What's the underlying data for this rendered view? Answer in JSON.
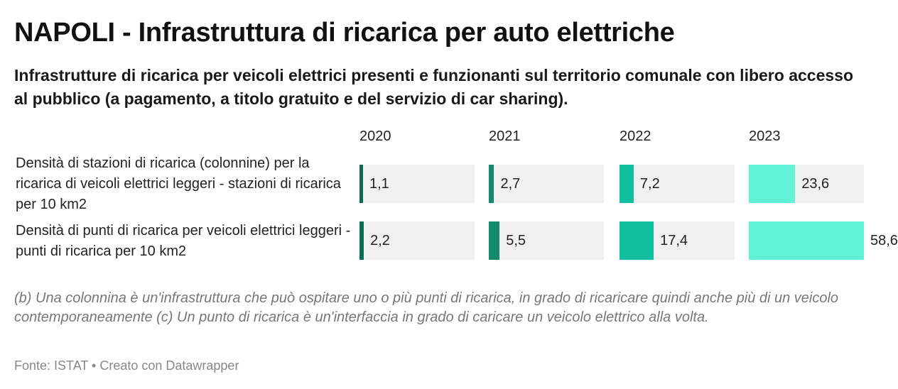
{
  "header": {
    "title": "NAPOLI - Infrastruttura di ricarica per auto elettriche",
    "subtitle": "Infrastrutture di ricarica per veicoli elettrici presenti e funzionanti sul territorio comunale con libero accesso al pubblico (a pagamento, a titolo gratuito e del servizio di car sharing)."
  },
  "chart_data": {
    "type": "table",
    "columns": [
      "2020",
      "2021",
      "2022",
      "2023"
    ],
    "rows": [
      {
        "label": "Densità di stazioni di ricarica (colonnine) per la ricarica di veicoli elettrici leggeri - stazioni di ricarica per 10 km2",
        "values": [
          1.1,
          2.7,
          7.2,
          23.6
        ],
        "display": [
          "1,1",
          "2,7",
          "7,2",
          "23,6"
        ]
      },
      {
        "label": "Densità di punti di ricarica per veicoli elettrici leggeri - punti di ricarica per 10 km2",
        "values": [
          2.2,
          5.5,
          17.4,
          58.6
        ],
        "display": [
          "2,2",
          "5,5",
          "17,4",
          "58,6"
        ]
      }
    ],
    "scale_max": 58.6,
    "colors": {
      "2020": "#0a6e54",
      "2021": "#138a6b",
      "2022": "#12bf9f",
      "2023": "#62f3d6",
      "cell_background": "#f0f0f0"
    }
  },
  "notes": "(b) Una colonnina è un'infrastruttura che può ospitare uno o più punti di ricarica, in grado di ricaricare quindi anche più di un veicolo contemporaneamente (c) Un punto di ricarica è un'interfaccia in grado di caricare un veicolo elettrico alla volta.",
  "footer": {
    "source": "Fonte: ISTAT • Creato con Datawrapper"
  }
}
